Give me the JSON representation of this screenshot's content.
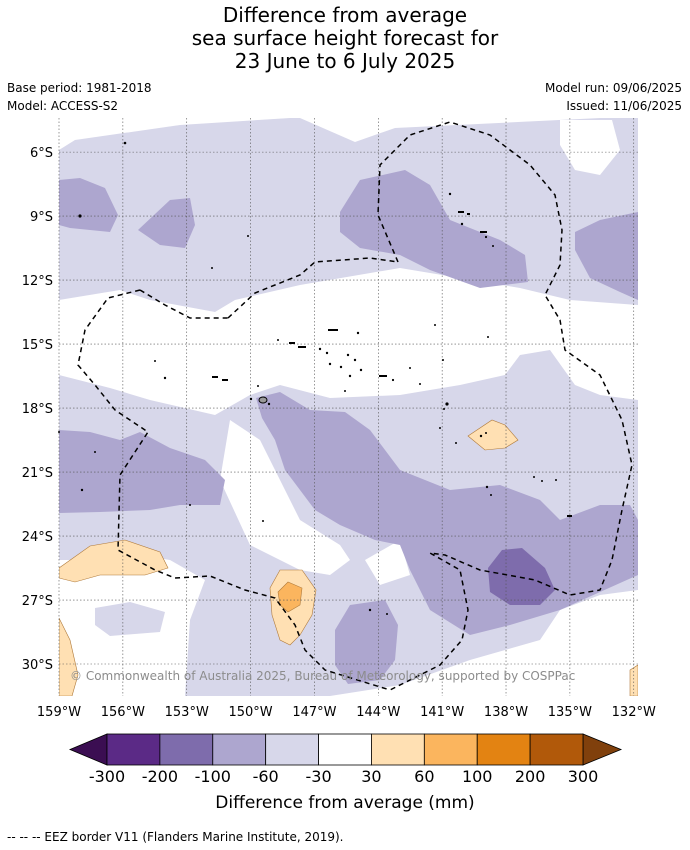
{
  "title_lines": [
    "Difference from average",
    "sea surface height forecast for",
    "23 June to 6 July 2025"
  ],
  "meta": {
    "base_period": "Base period: 1981-2018",
    "model": "Model: ACCESS-S2",
    "model_run": "Model run: 09/06/2025",
    "issued": "Issued: 11/06/2025"
  },
  "map": {
    "lat_labels": [
      "6°S",
      "9°S",
      "12°S",
      "15°S",
      "18°S",
      "21°S",
      "24°S",
      "27°S",
      "30°S"
    ],
    "lon_labels": [
      "159°W",
      "156°W",
      "153°W",
      "150°W",
      "147°W",
      "144°W",
      "141°W",
      "138°W",
      "135°W",
      "132°W"
    ],
    "lat_values": [
      -6,
      -9,
      -12,
      -15,
      -18,
      -21,
      -24,
      -27,
      -30
    ],
    "lon_values": [
      -159,
      -156,
      -153,
      -150,
      -147,
      -144,
      -141,
      -138,
      -135,
      -132
    ],
    "lat_range": [
      -31.5,
      -4.4
    ],
    "lon_range": [
      -159,
      -131.8
    ],
    "grid": true,
    "copyright": "© Commonwealth of Australia 2025, Bureau of Meteorology, supported by COSPPac"
  },
  "colorbar": {
    "boundaries": [
      "-300",
      "-200",
      "-100",
      "-60",
      "-30",
      "30",
      "60",
      "100",
      "200",
      "300"
    ],
    "colors": [
      "#5b2a86",
      "#7e6cac",
      "#ada6cf",
      "#d7d7ea",
      "#ffffff",
      "#ffe0b3",
      "#fbb55e",
      "#e38312",
      "#b1590a"
    ],
    "under_color": "#3b0e52",
    "over_color": "#80400c",
    "title": "Difference from average (mm)",
    "unit": "mm"
  },
  "legend_note": "--  --  -- EEZ border V11 (Flanders Marine Institute, 2019)."
}
